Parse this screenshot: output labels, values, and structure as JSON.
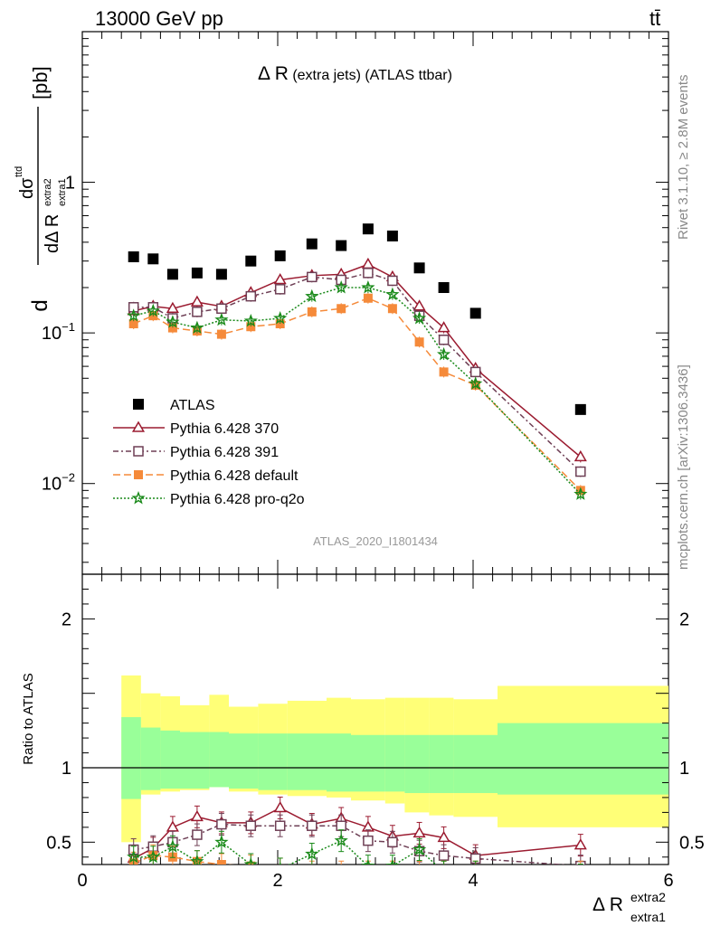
{
  "header": {
    "energy_label": "13000 GeV pp",
    "process_label": "tt̄",
    "analysis_id": "ATLAS_2020_I1801434",
    "side_rivet": "Rivet 3.1.10, ≥ 2.8M events",
    "side_mcplots": "mcplots.cern.ch [arXiv:1306.3436]"
  },
  "chart_data": [
    {
      "type": "scatter",
      "title": "Δ R (extra jets) (ATLAS ttbar)",
      "title_main": "Δ R",
      "title_sub": "(extra jets) (ATLAS ttbar)",
      "ylabel": "dσ^ttd / dΔ R_extra1^extra2 [pb]",
      "ylabel_unit": "[pb]",
      "yscale": "log",
      "ylim": [
        0.0025,
        10
      ],
      "xlim": [
        0,
        6
      ],
      "ytick_labels": [
        "10^-2",
        "10^-1",
        "1"
      ],
      "legend_position": "left-middle",
      "x": [
        0.525,
        0.725,
        0.925,
        1.175,
        1.425,
        1.725,
        2.025,
        2.35,
        2.65,
        2.925,
        3.175,
        3.45,
        3.7,
        4.025,
        5.1
      ],
      "series": [
        {
          "name": "ATLAS",
          "color": "#000000",
          "marker": "filled-square",
          "values": [
            0.32,
            0.31,
            0.245,
            0.25,
            0.245,
            0.3,
            0.325,
            0.39,
            0.38,
            0.49,
            0.44,
            0.27,
            0.2,
            0.135,
            0.031
          ]
        },
        {
          "name": "Pythia 6.428 370",
          "color": "#9b1b30",
          "marker": "open-triangle",
          "dash": "",
          "values": [
            0.14,
            0.15,
            0.145,
            0.16,
            0.15,
            0.185,
            0.225,
            0.24,
            0.245,
            0.285,
            0.235,
            0.15,
            0.108,
            0.058,
            0.015
          ]
        },
        {
          "name": "Pythia 6.428 391",
          "color": "#6e3f55",
          "marker": "open-square",
          "dash": "6,3,2,3",
          "values": [
            0.148,
            0.148,
            0.125,
            0.138,
            0.145,
            0.175,
            0.195,
            0.235,
            0.225,
            0.25,
            0.222,
            0.13,
            0.09,
            0.055,
            0.012
          ]
        },
        {
          "name": "Pythia 6.428 default",
          "color": "#f58a3a",
          "marker": "filled-square",
          "dash": "8,4",
          "values": [
            0.115,
            0.13,
            0.108,
            0.103,
            0.098,
            0.11,
            0.115,
            0.138,
            0.145,
            0.17,
            0.145,
            0.087,
            0.055,
            0.045,
            0.009
          ]
        },
        {
          "name": "Pythia 6.428 pro-q2o",
          "color": "#1a8a1a",
          "marker": "star",
          "dash": "2,2",
          "values": [
            0.13,
            0.14,
            0.118,
            0.108,
            0.122,
            0.12,
            0.125,
            0.175,
            0.2,
            0.2,
            0.18,
            0.125,
            0.072,
            0.046,
            0.0085
          ]
        }
      ]
    },
    {
      "type": "scatter",
      "ylabel": "Ratio to ATLAS",
      "xlabel_main": "Δ R",
      "xlabel_sup": "extra2",
      "xlabel_sub": "extra1",
      "ylim": [
        0.35,
        2.3
      ],
      "xlim": [
        0,
        6
      ],
      "yticks": [
        0.5,
        1,
        2
      ],
      "xticks": [
        0,
        2,
        4,
        6
      ],
      "ytick_labels": [
        "0.5",
        "1",
        "2"
      ],
      "xtick_labels": [
        "0",
        "2",
        "4",
        "6"
      ],
      "bin_edges": [
        0.4,
        0.6,
        0.8,
        1.0,
        1.3,
        1.5,
        1.8,
        2.1,
        2.5,
        2.75,
        3.1,
        3.3,
        3.55,
        3.8,
        4.25,
        6.0
      ],
      "band_outer": {
        "color": "#ffff77",
        "low": [
          0.5,
          0.82,
          0.84,
          0.85,
          0.87,
          0.84,
          0.82,
          0.81,
          0.8,
          0.78,
          0.76,
          0.7,
          0.68,
          0.67,
          0.6
        ],
        "high": [
          1.62,
          1.5,
          1.48,
          1.42,
          1.49,
          1.41,
          1.43,
          1.45,
          1.47,
          1.46,
          1.47,
          1.47,
          1.47,
          1.46,
          1.55
        ]
      },
      "band_inner": {
        "color": "#99ff99",
        "low": [
          0.79,
          0.85,
          0.86,
          0.86,
          0.87,
          0.86,
          0.85,
          0.85,
          0.84,
          0.84,
          0.84,
          0.83,
          0.83,
          0.83,
          0.82
        ],
        "high": [
          1.34,
          1.27,
          1.25,
          1.24,
          1.24,
          1.23,
          1.23,
          1.23,
          1.23,
          1.22,
          1.22,
          1.22,
          1.22,
          1.22,
          1.3
        ]
      },
      "x": [
        0.525,
        0.725,
        0.925,
        1.175,
        1.425,
        1.725,
        2.025,
        2.35,
        2.65,
        2.925,
        3.175,
        3.45,
        3.7,
        4.025,
        5.1
      ],
      "series": [
        {
          "name": "Pythia 6.428 370",
          "color": "#9b1b30",
          "marker": "open-triangle",
          "dash": "",
          "values": [
            0.39,
            0.46,
            0.6,
            0.67,
            0.63,
            0.63,
            0.73,
            0.62,
            0.66,
            0.6,
            0.54,
            0.56,
            0.53,
            0.41,
            0.48
          ]
        },
        {
          "name": "Pythia 6.428 391",
          "color": "#6e3f55",
          "marker": "open-square",
          "dash": "6,3,2,3",
          "values": [
            0.45,
            0.47,
            0.5,
            0.55,
            0.62,
            0.61,
            0.61,
            0.61,
            0.61,
            0.51,
            0.5,
            0.44,
            0.41,
            0.39,
            0.34
          ]
        },
        {
          "name": "Pythia 6.428 default",
          "color": "#f58a3a",
          "marker": "filled-square",
          "dash": "8,4",
          "values": [
            0.36,
            0.41,
            0.4,
            0.37,
            0.35,
            0.34,
            0.32,
            0.3,
            0.3,
            0.3,
            0.3,
            0.3,
            0.3,
            0.3,
            0.3
          ]
        },
        {
          "name": "Pythia 6.428 pro-q2o",
          "color": "#1a8a1a",
          "marker": "star",
          "dash": "2,2",
          "values": [
            0.4,
            0.4,
            0.47,
            0.37,
            0.5,
            0.35,
            0.32,
            0.42,
            0.51,
            0.34,
            0.34,
            0.45,
            0.3,
            0.3,
            0.28
          ]
        }
      ]
    }
  ]
}
